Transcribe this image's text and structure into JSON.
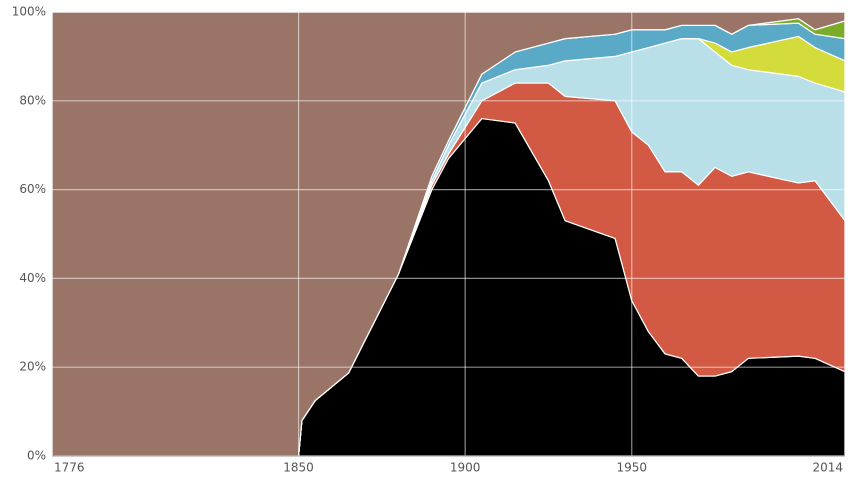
{
  "chart_data": {
    "type": "stacked-area",
    "x": [
      1776,
      1850,
      1851,
      1855,
      1865,
      1880,
      1890,
      1895,
      1905,
      1915,
      1925,
      1930,
      1945,
      1950,
      1955,
      1960,
      1965,
      1970,
      1975,
      1980,
      1985,
      2000,
      2005,
      2014
    ],
    "series": [
      {
        "color": "#000000",
        "values": [
          0,
          0,
          8,
          12.5,
          18.7,
          41,
          60,
          67,
          76,
          75,
          62,
          53,
          49,
          35,
          28,
          23,
          22,
          18,
          18,
          19,
          22,
          22.5,
          22,
          19
        ]
      },
      {
        "color": "#d25a45",
        "values": [
          0,
          0,
          0,
          0,
          0,
          0,
          1,
          1,
          4,
          9,
          22,
          28,
          31,
          38,
          42,
          41,
          42,
          43,
          47,
          44,
          42,
          39,
          40,
          34
        ]
      },
      {
        "color": "#b9dfe8",
        "values": [
          0,
          0,
          0,
          0,
          0,
          0,
          1,
          2,
          4,
          3,
          4,
          8,
          10,
          18,
          22,
          29,
          30,
          33,
          26,
          25,
          23,
          24,
          22,
          29
        ]
      },
      {
        "color": "#d4dc3c",
        "values": [
          0,
          0,
          0,
          0,
          0,
          0,
          0,
          0,
          0,
          0,
          0,
          0,
          0,
          0,
          0,
          0,
          0,
          0,
          2,
          3,
          5,
          9,
          8,
          7
        ]
      },
      {
        "color": "#5aa9c7",
        "values": [
          0,
          0,
          0,
          0,
          0,
          0,
          1,
          1,
          2,
          4,
          5,
          5,
          5,
          5,
          4,
          3,
          3,
          3,
          4,
          4,
          5,
          3,
          3,
          5
        ]
      },
      {
        "color": "#7aac2a",
        "values": [
          0,
          0,
          0,
          0,
          0,
          0,
          0,
          0,
          0,
          0,
          0,
          0,
          0,
          0,
          0,
          0,
          0,
          0,
          0,
          0,
          0,
          1,
          1,
          4
        ]
      },
      {
        "color": "#9a7466",
        "values": [
          100,
          100,
          92,
          87.5,
          81.3,
          59,
          37,
          29,
          14,
          9,
          7,
          6,
          5,
          4,
          4,
          4,
          3,
          3,
          3,
          5,
          3,
          1.5,
          4,
          2
        ]
      }
    ],
    "xlim": [
      1776,
      2014
    ],
    "xticks": [
      1776,
      1850,
      1900,
      1950,
      2014
    ],
    "ylim": [
      0,
      100
    ],
    "yticks": [
      {
        "value": 0,
        "label": "0%"
      },
      {
        "value": 20,
        "label": "20%"
      },
      {
        "value": 40,
        "label": "40%"
      },
      {
        "value": 60,
        "label": "60%"
      },
      {
        "value": 80,
        "label": "80%"
      },
      {
        "value": 100,
        "label": "100%"
      }
    ],
    "grid": true
  }
}
